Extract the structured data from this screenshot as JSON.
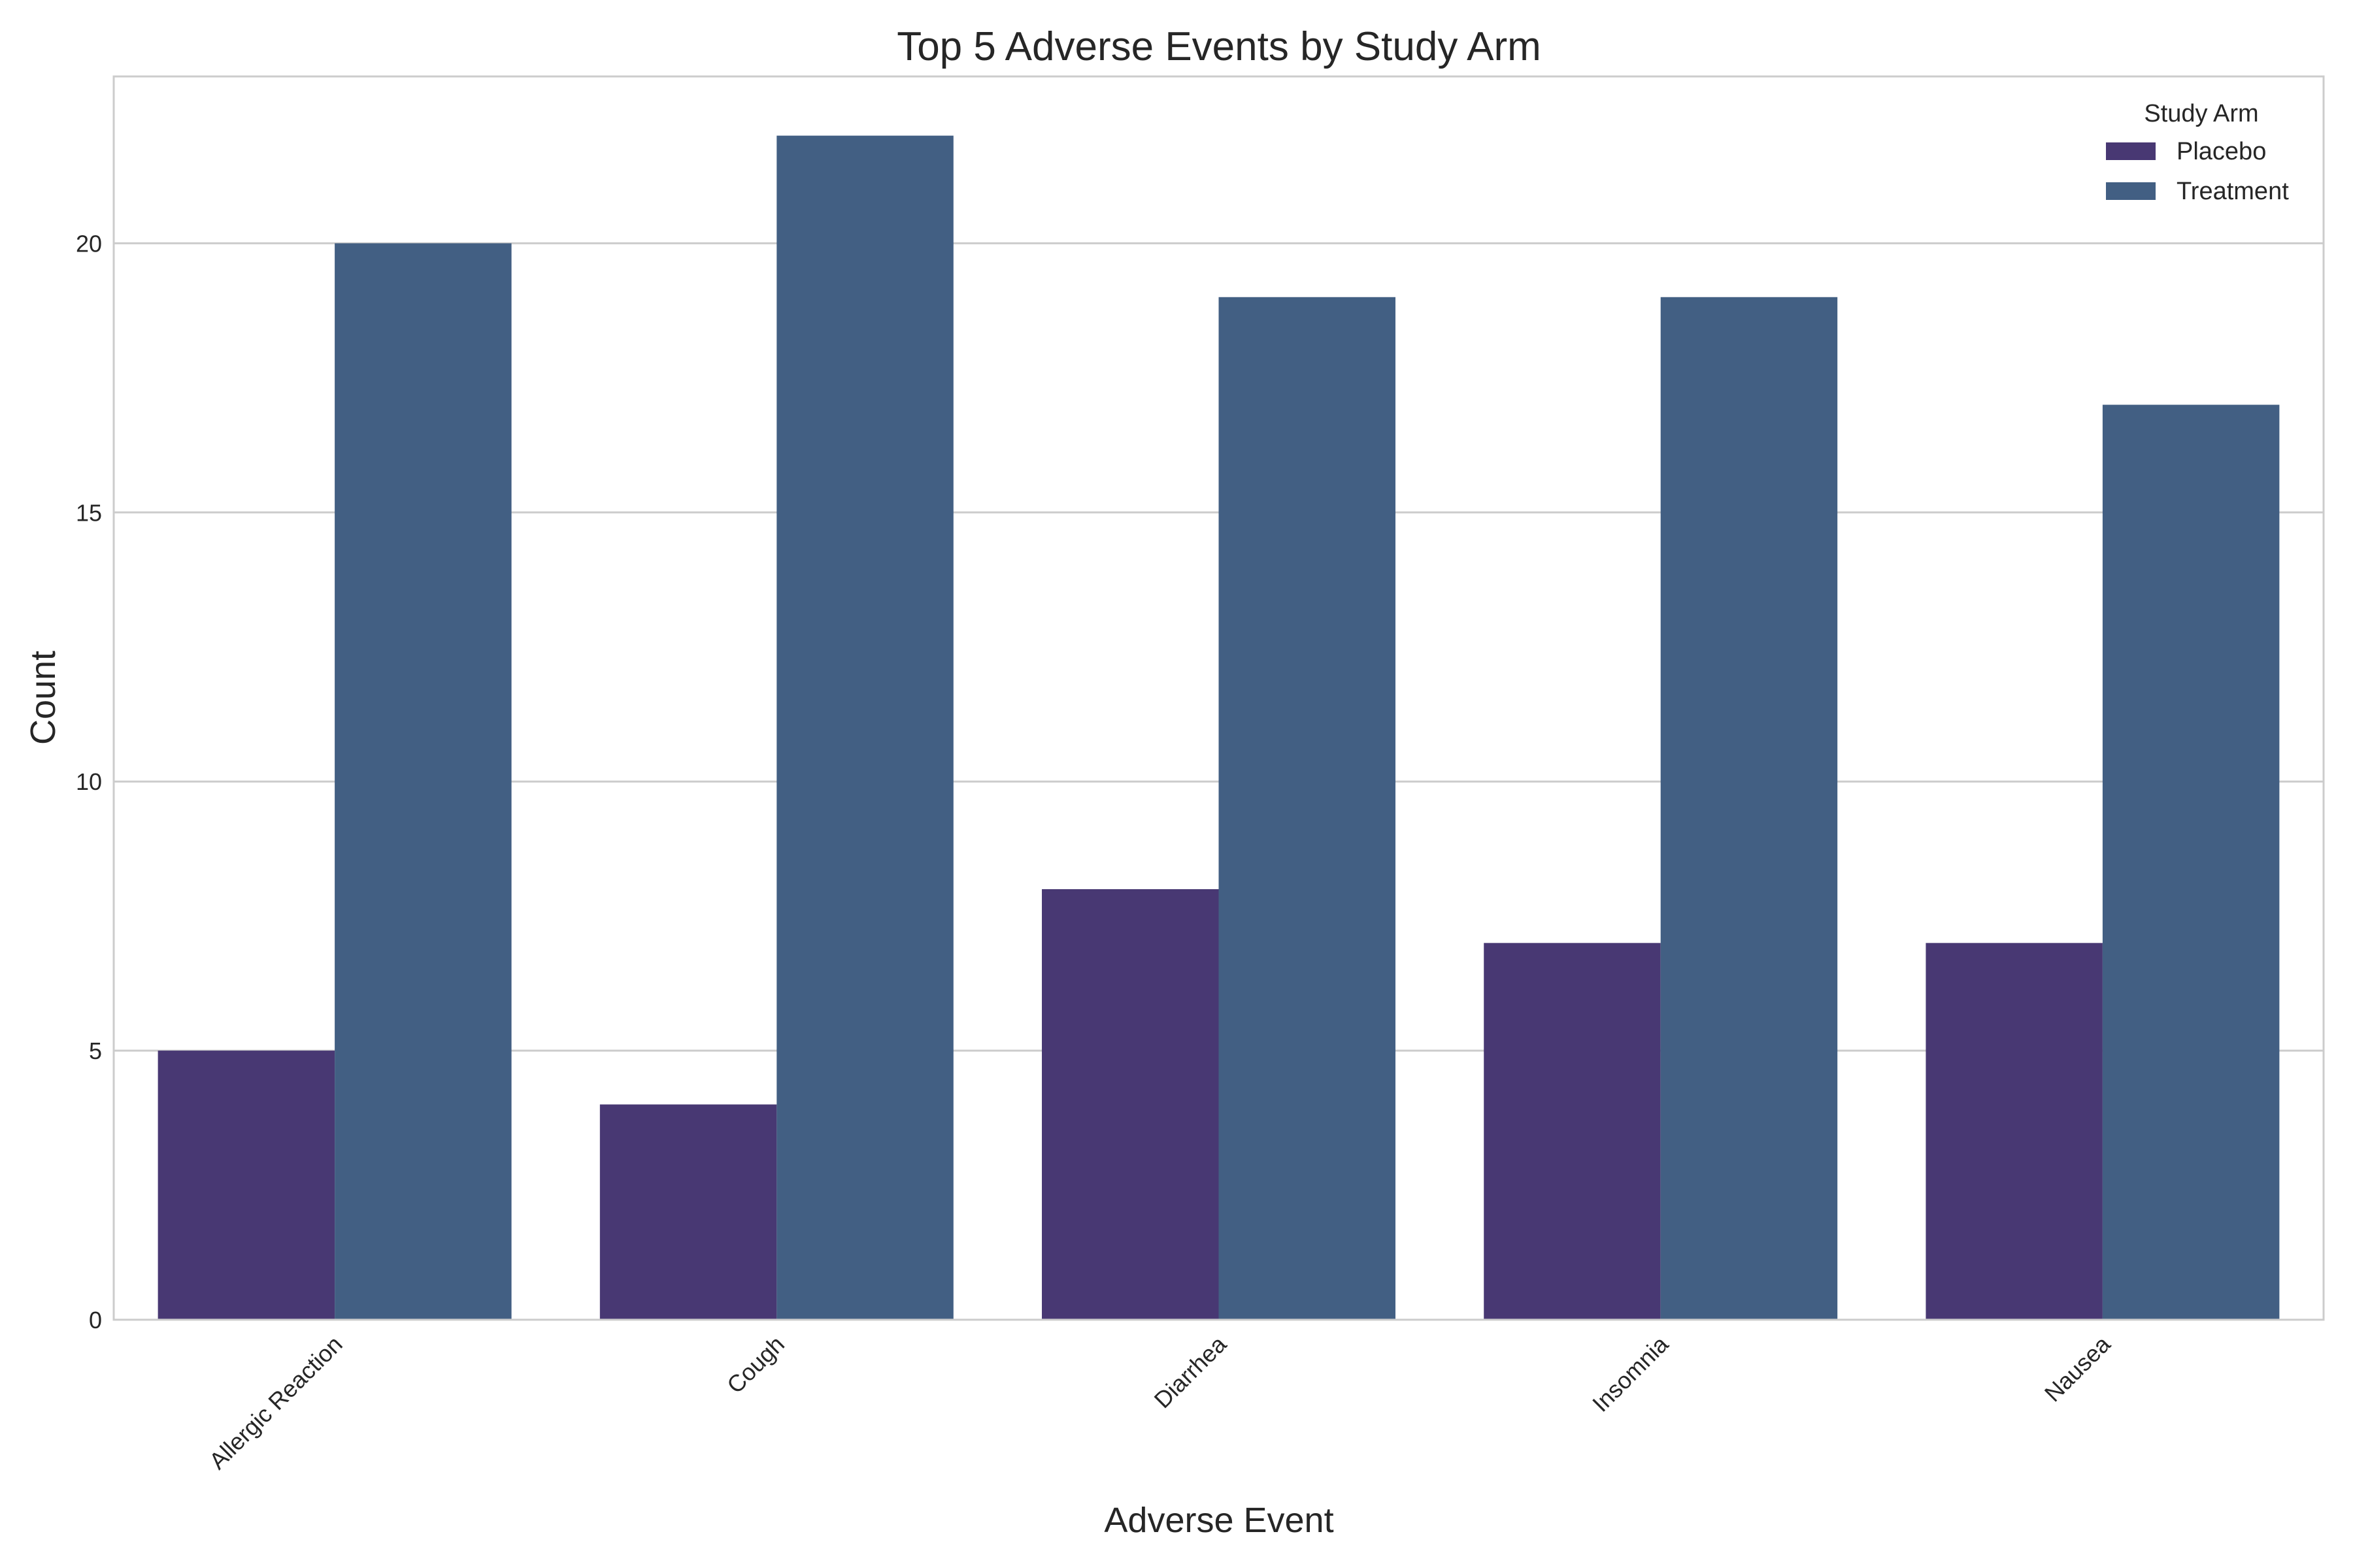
{
  "chart_data": {
    "type": "bar",
    "title": "Top 5 Adverse Events by Study Arm",
    "xlabel": "Adverse Event",
    "ylabel": "Count",
    "categories": [
      "Allergic Reaction",
      "Cough",
      "Diarrhea",
      "Insomnia",
      "Nausea"
    ],
    "series": [
      {
        "name": "Placebo",
        "values": [
          5,
          4,
          8,
          7,
          7
        ],
        "color": "#483873"
      },
      {
        "name": "Treatment",
        "values": [
          20,
          22,
          19,
          19,
          17
        ],
        "color": "#425f83"
      }
    ],
    "ylim": [
      0,
      23.1
    ],
    "yticks": [
      0,
      5,
      10,
      15,
      20
    ],
    "grid": true,
    "legend": {
      "title": "Study Arm",
      "placement": "top-right"
    }
  }
}
